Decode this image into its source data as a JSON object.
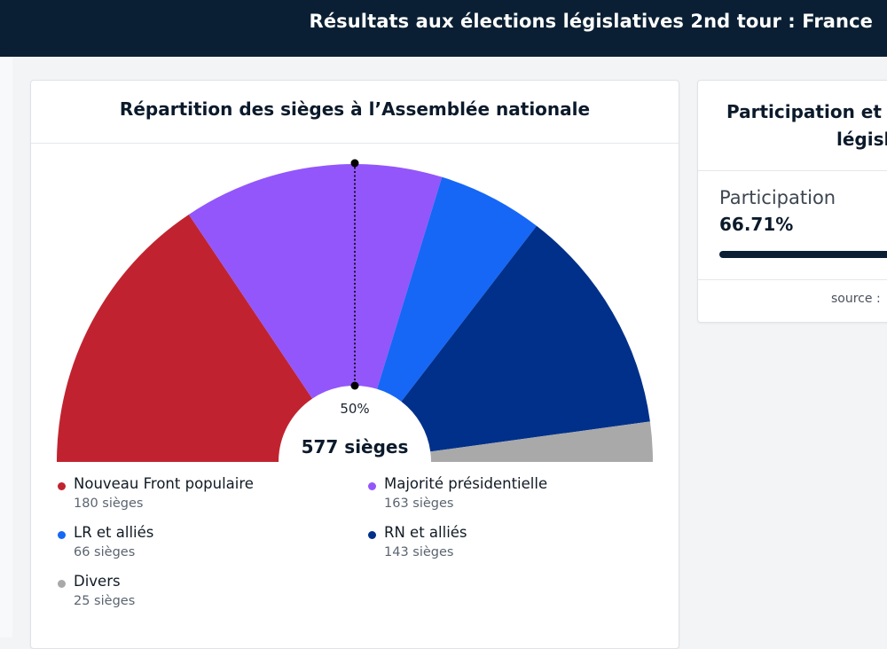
{
  "header": {
    "title": "Résultats aux élections législatives 2nd tour : France"
  },
  "seats_card": {
    "title": "Répartition des sièges à l’Assemblée nationale"
  },
  "chart_data": {
    "type": "pie",
    "subtype": "semicircle",
    "title": "Répartition des sièges à l’Assemblée nationale",
    "total_label": "577 sièges",
    "total": 577,
    "majority_marker_label": "50%",
    "series": [
      {
        "name": "Nouveau Front populaire",
        "value": 180,
        "seats_label": "180 sièges",
        "color": "#c0232f"
      },
      {
        "name": "Majorité présidentielle",
        "value": 163,
        "seats_label": "163 sièges",
        "color": "#9356fb"
      },
      {
        "name": "LR et alliés",
        "value": 66,
        "seats_label": "66 sièges",
        "color": "#1667f5"
      },
      {
        "name": "RN et alliés",
        "value": 143,
        "seats_label": "143 sièges",
        "color": "#00308a"
      },
      {
        "name": "Divers",
        "value": 25,
        "seats_label": "25 sièges",
        "color": "#a9a9a9"
      }
    ]
  },
  "participation_card": {
    "title_line1": "Participation et",
    "title_line2": "législ",
    "label": "Participation",
    "value": "66.71%",
    "percent": 66.71,
    "source_label": "source :"
  }
}
